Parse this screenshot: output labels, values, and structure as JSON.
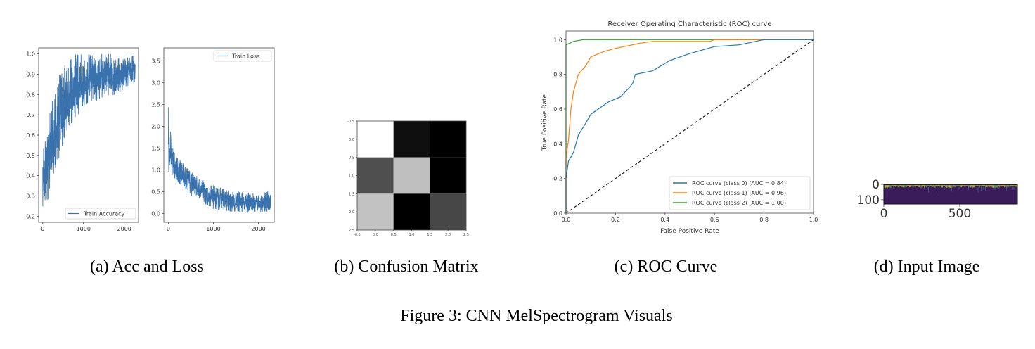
{
  "captions": {
    "a": "(a) Acc and Loss",
    "b": "(b) Confusion Matrix",
    "c": "(c) ROC Curve",
    "d": "(d) Input Image",
    "figure": "Figure 3: CNN MelSpectrogram Visuals"
  },
  "chart_data": [
    {
      "type": "line",
      "legend": "Train Accuracy",
      "legend_position": "bottom-right",
      "color": "#3a72ad",
      "xlim": [
        -100,
        2350
      ],
      "ylim": [
        0.17,
        1.03
      ],
      "xticks": [
        0,
        1000,
        2000
      ],
      "yticks": [
        0.2,
        0.3,
        0.4,
        0.5,
        0.6,
        0.7,
        0.8,
        0.9,
        1.0
      ],
      "x": [
        0,
        100,
        200,
        300,
        400,
        500,
        600,
        800,
        1000,
        1200,
        1500,
        1800,
        2000,
        2270
      ],
      "lower": [
        0.19,
        0.25,
        0.36,
        0.43,
        0.48,
        0.55,
        0.62,
        0.68,
        0.74,
        0.76,
        0.78,
        0.8,
        0.82,
        0.86
      ],
      "upper": [
        0.53,
        0.62,
        0.75,
        0.82,
        0.9,
        0.93,
        0.97,
        1.0,
        1.0,
        1.0,
        1.0,
        1.0,
        1.0,
        1.0
      ]
    },
    {
      "type": "line",
      "legend": "Train Loss",
      "legend_position": "top-right",
      "color": "#3a72ad",
      "xlim": [
        -100,
        2350
      ],
      "ylim": [
        -0.2,
        3.8
      ],
      "xticks": [
        0,
        1000,
        2000
      ],
      "yticks": [
        0.0,
        0.5,
        1.0,
        1.5,
        2.0,
        2.5,
        3.0,
        3.5
      ],
      "x": [
        0,
        20,
        50,
        100,
        200,
        300,
        500,
        700,
        1000,
        1300,
        1600,
        2000,
        2270
      ],
      "lower": [
        0.9,
        0.9,
        0.9,
        0.85,
        0.7,
        0.6,
        0.4,
        0.25,
        0.1,
        0.05,
        0.02,
        0.02,
        0.02
      ],
      "upper": [
        3.6,
        1.9,
        1.9,
        1.5,
        1.3,
        1.2,
        1.05,
        0.8,
        0.65,
        0.55,
        0.5,
        0.45,
        0.55
      ]
    },
    {
      "type": "heatmap",
      "colormap": "gray",
      "xlim": [
        -0.5,
        2.5
      ],
      "ylim": [
        2.5,
        -0.5
      ],
      "xticks": [
        -0.5,
        0.0,
        0.5,
        1.0,
        1.5,
        2.0,
        2.5
      ],
      "yticks": [
        -0.5,
        0.0,
        0.5,
        1.0,
        1.5,
        2.0,
        2.5
      ],
      "values": [
        [
          1.0,
          0.06,
          0.0
        ],
        [
          0.31,
          0.75,
          0.0
        ],
        [
          0.76,
          0.0,
          0.28
        ]
      ]
    },
    {
      "type": "line",
      "title": "Receiver Operating Characteristic (ROC) curve",
      "xlabel": "False Positive Rate",
      "ylabel": "True Positive Rate",
      "xlim": [
        0,
        1
      ],
      "ylim": [
        0,
        1.05
      ],
      "xticks": [
        0.0,
        0.2,
        0.4,
        0.6,
        0.8,
        1.0
      ],
      "yticks": [
        0.0,
        0.2,
        0.4,
        0.6,
        0.8,
        1.0
      ],
      "legend_position": "bottom-right",
      "series": [
        {
          "name": "ROC curve (class 0) (AUC = 0.84)",
          "color": "#1f77b4",
          "x": [
            0,
            0,
            0.01,
            0.03,
            0.05,
            0.08,
            0.1,
            0.13,
            0.17,
            0.22,
            0.26,
            0.27,
            0.28,
            0.35,
            0.42,
            0.5,
            0.6,
            0.7,
            0.8,
            1
          ],
          "y": [
            0,
            0.2,
            0.3,
            0.35,
            0.45,
            0.52,
            0.57,
            0.6,
            0.64,
            0.67,
            0.73,
            0.75,
            0.8,
            0.82,
            0.88,
            0.92,
            0.96,
            0.97,
            1.0,
            1.0
          ]
        },
        {
          "name": "ROC curve (class 1) (AUC = 0.96)",
          "color": "#ff7f0e",
          "x": [
            0,
            0,
            0.01,
            0.02,
            0.03,
            0.05,
            0.08,
            0.1,
            0.15,
            0.2,
            0.3,
            0.35,
            0.58,
            0.6,
            1
          ],
          "y": [
            0,
            0.32,
            0.42,
            0.6,
            0.7,
            0.8,
            0.85,
            0.9,
            0.93,
            0.95,
            0.98,
            0.99,
            0.99,
            1.0,
            1.0
          ]
        },
        {
          "name": "ROC curve (class 2) (AUC = 1.00)",
          "color": "#2ca02c",
          "x": [
            0,
            0,
            0,
            0.03,
            0.07,
            1
          ],
          "y": [
            0,
            0.75,
            0.97,
            0.99,
            1.0,
            1.0
          ]
        },
        {
          "name": "",
          "color": "#222222",
          "dashed": true,
          "x": [
            0,
            1
          ],
          "y": [
            0,
            1
          ]
        }
      ]
    },
    {
      "type": "heatmap",
      "colormap": "viridis",
      "xticks": [
        0,
        500
      ],
      "yticks": [
        0,
        100
      ],
      "xlim": [
        0,
        880
      ],
      "ylim": [
        128,
        0
      ]
    }
  ]
}
